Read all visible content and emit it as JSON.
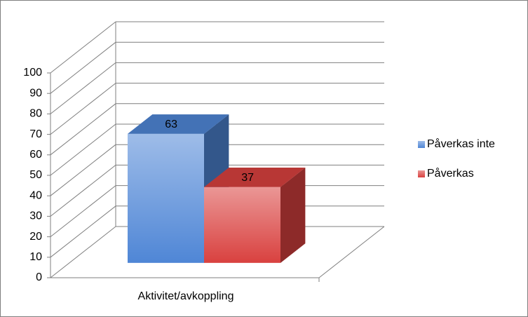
{
  "chart_data": {
    "type": "bar3d",
    "categories": [
      "Aktivitet/avkoppling"
    ],
    "series": [
      {
        "name": "Påverkas inte",
        "color": "#4f86d6",
        "values": [
          63
        ]
      },
      {
        "name": "Påverkas",
        "color": "#d9413f",
        "values": [
          37
        ]
      }
    ],
    "ylim": [
      0,
      100
    ],
    "yticks": [
      0,
      10,
      20,
      30,
      40,
      50,
      60,
      70,
      80,
      90,
      100
    ],
    "grid": true,
    "legend": "right"
  }
}
